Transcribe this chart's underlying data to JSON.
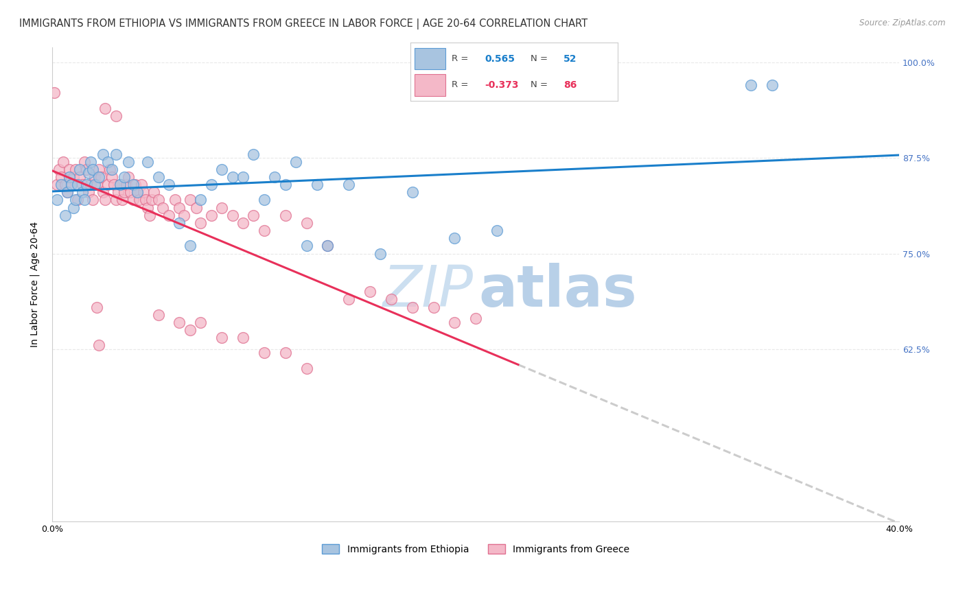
{
  "title": "IMMIGRANTS FROM ETHIOPIA VS IMMIGRANTS FROM GREECE IN LABOR FORCE | AGE 20-64 CORRELATION CHART",
  "source": "Source: ZipAtlas.com",
  "ylabel": "In Labor Force | Age 20-64",
  "xlim": [
    0.0,
    0.4
  ],
  "ylim": [
    0.4,
    1.02
  ],
  "ethiopia_color": "#a8c4e0",
  "ethiopia_edge": "#5b9bd5",
  "greece_color": "#f4b8c8",
  "greece_edge": "#e07090",
  "ethiopia_R": 0.565,
  "ethiopia_N": 52,
  "greece_R": -0.373,
  "greece_N": 86,
  "ethiopia_line_color": "#1a7fcb",
  "greece_line_color": "#e8305a",
  "greece_dash_color": "#cccccc",
  "right_tick_color": "#4472c4",
  "watermark_color": "#d0e4f7",
  "background_color": "#ffffff",
  "grid_color": "#e8e8e8",
  "title_fontsize": 10.5,
  "axis_label_fontsize": 10,
  "tick_fontsize": 9,
  "ethiopia_x": [
    0.002,
    0.004,
    0.006,
    0.007,
    0.008,
    0.009,
    0.01,
    0.011,
    0.012,
    0.013,
    0.014,
    0.015,
    0.016,
    0.017,
    0.018,
    0.019,
    0.02,
    0.022,
    0.024,
    0.026,
    0.028,
    0.03,
    0.032,
    0.034,
    0.036,
    0.038,
    0.04,
    0.045,
    0.05,
    0.055,
    0.06,
    0.065,
    0.07,
    0.075,
    0.08,
    0.085,
    0.09,
    0.095,
    0.1,
    0.105,
    0.11,
    0.115,
    0.12,
    0.125,
    0.13,
    0.14,
    0.155,
    0.17,
    0.19,
    0.21,
    0.33,
    0.34
  ],
  "ethiopia_y": [
    0.82,
    0.84,
    0.8,
    0.83,
    0.85,
    0.84,
    0.81,
    0.82,
    0.84,
    0.86,
    0.83,
    0.82,
    0.84,
    0.855,
    0.87,
    0.86,
    0.84,
    0.85,
    0.88,
    0.87,
    0.86,
    0.88,
    0.84,
    0.85,
    0.87,
    0.84,
    0.83,
    0.87,
    0.85,
    0.84,
    0.79,
    0.76,
    0.82,
    0.84,
    0.86,
    0.85,
    0.85,
    0.88,
    0.82,
    0.85,
    0.84,
    0.87,
    0.76,
    0.84,
    0.76,
    0.84,
    0.75,
    0.83,
    0.77,
    0.78,
    0.97,
    0.97
  ],
  "greece_x": [
    0.001,
    0.002,
    0.003,
    0.004,
    0.005,
    0.006,
    0.007,
    0.008,
    0.009,
    0.01,
    0.011,
    0.012,
    0.013,
    0.014,
    0.015,
    0.016,
    0.017,
    0.018,
    0.019,
    0.02,
    0.021,
    0.022,
    0.023,
    0.024,
    0.025,
    0.026,
    0.027,
    0.028,
    0.029,
    0.03,
    0.031,
    0.032,
    0.033,
    0.034,
    0.035,
    0.036,
    0.037,
    0.038,
    0.039,
    0.04,
    0.041,
    0.042,
    0.043,
    0.044,
    0.045,
    0.046,
    0.047,
    0.048,
    0.05,
    0.052,
    0.055,
    0.058,
    0.06,
    0.062,
    0.065,
    0.068,
    0.07,
    0.075,
    0.08,
    0.085,
    0.09,
    0.095,
    0.1,
    0.11,
    0.12,
    0.13,
    0.14,
    0.15,
    0.16,
    0.17,
    0.18,
    0.19,
    0.05,
    0.06,
    0.065,
    0.07,
    0.08,
    0.09,
    0.1,
    0.11,
    0.12,
    0.025,
    0.03,
    0.2,
    0.021,
    0.022
  ],
  "greece_y": [
    0.96,
    0.84,
    0.86,
    0.85,
    0.87,
    0.84,
    0.83,
    0.86,
    0.84,
    0.85,
    0.86,
    0.82,
    0.85,
    0.84,
    0.87,
    0.86,
    0.83,
    0.84,
    0.82,
    0.85,
    0.84,
    0.86,
    0.85,
    0.83,
    0.82,
    0.84,
    0.86,
    0.85,
    0.84,
    0.82,
    0.83,
    0.84,
    0.82,
    0.83,
    0.84,
    0.85,
    0.83,
    0.82,
    0.84,
    0.83,
    0.82,
    0.84,
    0.83,
    0.82,
    0.81,
    0.8,
    0.82,
    0.83,
    0.82,
    0.81,
    0.8,
    0.82,
    0.81,
    0.8,
    0.82,
    0.81,
    0.79,
    0.8,
    0.81,
    0.8,
    0.79,
    0.8,
    0.78,
    0.8,
    0.79,
    0.76,
    0.69,
    0.7,
    0.69,
    0.68,
    0.68,
    0.66,
    0.67,
    0.66,
    0.65,
    0.66,
    0.64,
    0.64,
    0.62,
    0.62,
    0.6,
    0.94,
    0.93,
    0.665,
    0.68,
    0.63
  ]
}
